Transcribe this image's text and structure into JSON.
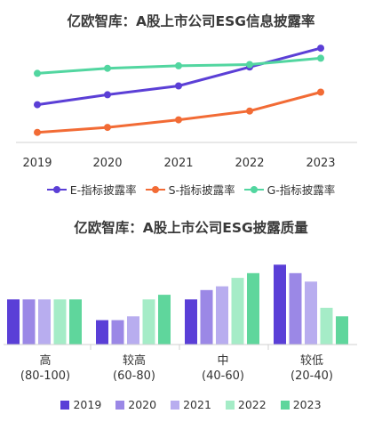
{
  "charts": {
    "line_title": "亿欧智库：A股上市公司ESG信息披露率",
    "bar_title": "亿欧智库：A股上市公司ESG披露质量"
  },
  "chart_data": [
    {
      "type": "line",
      "title": "亿欧智库：A股上市公司ESG信息披露率",
      "x": [
        "2019",
        "2020",
        "2021",
        "2022",
        "2023"
      ],
      "series": [
        {
          "name": "E-指标披露率",
          "color": "#5b3fd6",
          "values": [
            0.3,
            0.38,
            0.45,
            0.6,
            0.75
          ]
        },
        {
          "name": "S-指标披露率",
          "color": "#f26b35",
          "values": [
            0.08,
            0.12,
            0.18,
            0.25,
            0.4
          ]
        },
        {
          "name": "G-指标披露率",
          "color": "#52d6a0",
          "values": [
            0.55,
            0.59,
            0.61,
            0.62,
            0.67
          ]
        }
      ],
      "ylim": [
        0,
        0.85
      ],
      "grid": false,
      "legend": "bottom"
    },
    {
      "type": "bar",
      "title": "亿欧智库：A股上市公司ESG披露质量",
      "categories": [
        {
          "main": "高",
          "range": "(80-100)"
        },
        {
          "main": "较高",
          "range": "(60-80)"
        },
        {
          "main": "中",
          "range": "(40-60)"
        },
        {
          "main": "较低",
          "range": "(20-40)"
        }
      ],
      "series": [
        {
          "name": "2019",
          "color": "#5a3fd7",
          "values": [
            48,
            26,
            48,
            85
          ]
        },
        {
          "name": "2020",
          "color": "#9b88e6",
          "values": [
            48,
            26,
            58,
            76
          ]
        },
        {
          "name": "2021",
          "color": "#b8adef",
          "values": [
            48,
            30,
            62,
            67
          ]
        },
        {
          "name": "2022",
          "color": "#a5ecc7",
          "values": [
            48,
            48,
            71,
            39
          ]
        },
        {
          "name": "2023",
          "color": "#5fd69c",
          "values": [
            48,
            53,
            76,
            30
          ]
        }
      ],
      "ylim": [
        0,
        90
      ],
      "grid": false,
      "legend": "bottom"
    }
  ]
}
